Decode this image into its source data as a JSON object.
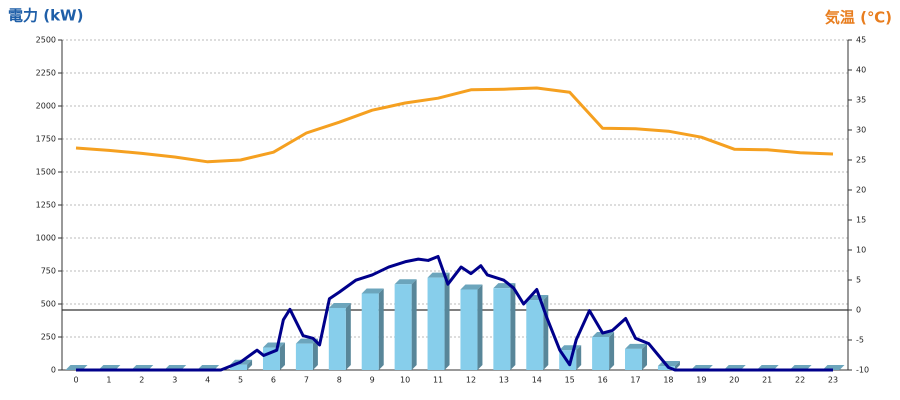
{
  "chart_data": {
    "type": "bar",
    "y_label": "電力 (kW)",
    "y2_label": "気温 (℃)",
    "categories": [
      "0",
      "1",
      "2",
      "3",
      "4",
      "5",
      "6",
      "7",
      "8",
      "9",
      "10",
      "11",
      "12",
      "13",
      "14",
      "15",
      "16",
      "17",
      "18",
      "19",
      "20",
      "21",
      "22",
      "23"
    ],
    "series": [
      {
        "type": "bar",
        "color": "#87ceeb",
        "values": [
          0,
          0,
          0,
          0,
          0,
          40,
          170,
          200,
          470,
          580,
          650,
          700,
          610,
          620,
          530,
          150,
          250,
          160,
          30,
          0,
          0,
          0,
          0,
          0
        ]
      },
      {
        "type": "line",
        "color": "#00008b",
        "x": [
          0,
          4.4,
          5,
          5.5,
          5.7,
          6.1,
          6.3,
          6.5,
          6.9,
          7.2,
          7.4,
          7.7,
          8,
          8.5,
          9,
          9.5,
          10,
          10.4,
          10.7,
          11,
          11.3,
          11.7,
          12,
          12.3,
          12.5,
          13,
          13.3,
          13.6,
          14,
          14.3,
          14.7,
          15,
          15.2,
          15.6,
          16,
          16.3,
          16.7,
          17,
          17.4,
          17.7,
          18,
          18.2,
          23
        ],
        "values": [
          0,
          0,
          60,
          150,
          110,
          150,
          380,
          460,
          260,
          240,
          190,
          540,
          590,
          680,
          720,
          780,
          820,
          840,
          830,
          860,
          650,
          780,
          730,
          790,
          720,
          680,
          620,
          500,
          610,
          400,
          150,
          40,
          230,
          450,
          280,
          300,
          390,
          240,
          200,
          110,
          20,
          0,
          0
        ]
      },
      {
        "type": "line",
        "axis": "y2",
        "color": "#f5a020",
        "values": [
          27,
          26.6,
          26.1,
          25.5,
          24.7,
          25,
          26.3,
          29.5,
          31.3,
          33.3,
          34.5,
          35.3,
          36.7,
          36.8,
          37,
          36.3,
          30.3,
          30.2,
          29.8,
          28.8,
          26.8,
          26.7,
          26.2,
          26
        ]
      }
    ],
    "ylim": [
      0,
      2500
    ],
    "yticks": [
      0,
      250,
      500,
      750,
      1000,
      1250,
      1500,
      1750,
      2000,
      2250,
      2500
    ],
    "y2lim": [
      -10,
      45
    ],
    "y2ticks": [
      -10,
      -5,
      0,
      5,
      10,
      15,
      20,
      25,
      30,
      35,
      40,
      45
    ],
    "grid": true
  }
}
